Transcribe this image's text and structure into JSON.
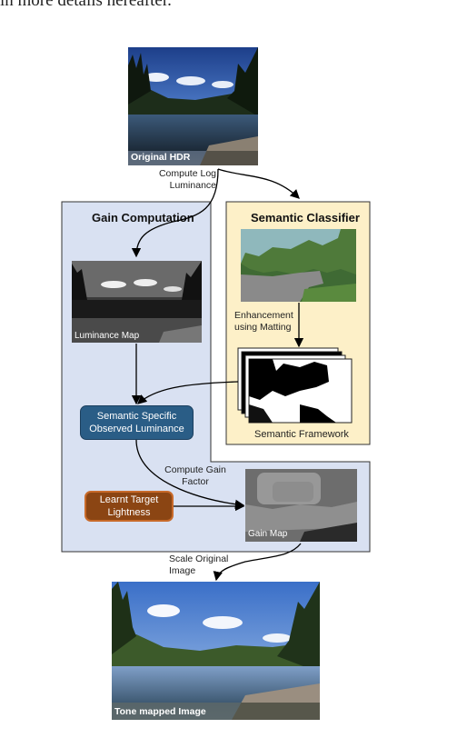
{
  "header_text": "in more details hereafter.",
  "panels": {
    "gain_computation": {
      "title": "Gain Computation",
      "color": "#d9e1f2"
    },
    "semantic_classifier": {
      "title": "Semantic Classifier",
      "color": "#fdf0c8"
    }
  },
  "images": {
    "original_hdr": "Original HDR",
    "luminance_map": "Luminance Map",
    "gain_map": "Gain Map",
    "semantic_framework": "Semantic Framework",
    "tone_mapped": "Tone mapped Image"
  },
  "boxes": {
    "semantic_luminance": {
      "line1": "Semantic Specific",
      "line2": "Observed Luminance",
      "color": "#2a5d86"
    },
    "learnt_target": {
      "line1": "Learnt Target",
      "line2": "Lightness",
      "color": "#8b4513"
    }
  },
  "arrow_labels": {
    "compute_log": {
      "line1": "Compute Log",
      "line2": "Luminance"
    },
    "enhancement": {
      "line1": "Enhancement",
      "line2": "using Matting"
    },
    "compute_gain": {
      "line1": "Compute Gain",
      "line2": "Factor"
    },
    "scale_original": {
      "line1": "Scale Original",
      "line2": "Image"
    }
  }
}
